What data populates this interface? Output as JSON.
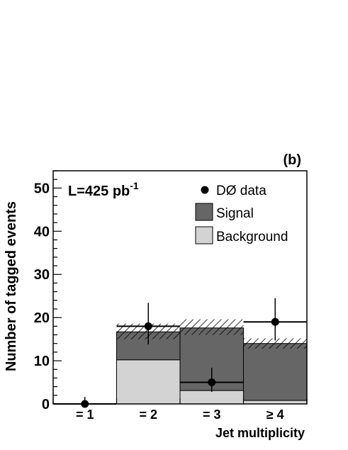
{
  "chart_data": {
    "type": "bar",
    "panel_label": "(b)",
    "luminosity_label": "L=425 pb",
    "luminosity_exponent": "-1",
    "xlabel": "Jet multiplicity",
    "ylabel": "Number of tagged events",
    "categories": [
      "= 1",
      "= 2",
      "= 3",
      "≥ 4"
    ],
    "ylim": [
      0,
      54
    ],
    "yticks": [
      0,
      10,
      20,
      30,
      40,
      50
    ],
    "grid": false,
    "legend_position": "top-right",
    "stacked": true,
    "series": [
      {
        "name": "Background",
        "values": [
          0,
          10.2,
          3.1,
          0.8
        ],
        "color": "#d3d3d3"
      },
      {
        "name": "Signal",
        "values": [
          0,
          6.5,
          14.5,
          13.2
        ],
        "color": "#666666"
      }
    ],
    "uncertainty_band": {
      "lower": [
        0,
        15.0,
        16.0,
        12.8
      ],
      "upper": [
        0,
        18.6,
        19.6,
        15.2
      ]
    },
    "data_points": {
      "name": "DØ data",
      "values": [
        0,
        18,
        5,
        19
      ],
      "err_low": [
        0,
        4.2,
        2.2,
        4.3
      ],
      "err_high": [
        1.6,
        5.4,
        3.4,
        5.5
      ]
    },
    "legend": [
      "DØ data",
      "Signal",
      "Background"
    ]
  }
}
